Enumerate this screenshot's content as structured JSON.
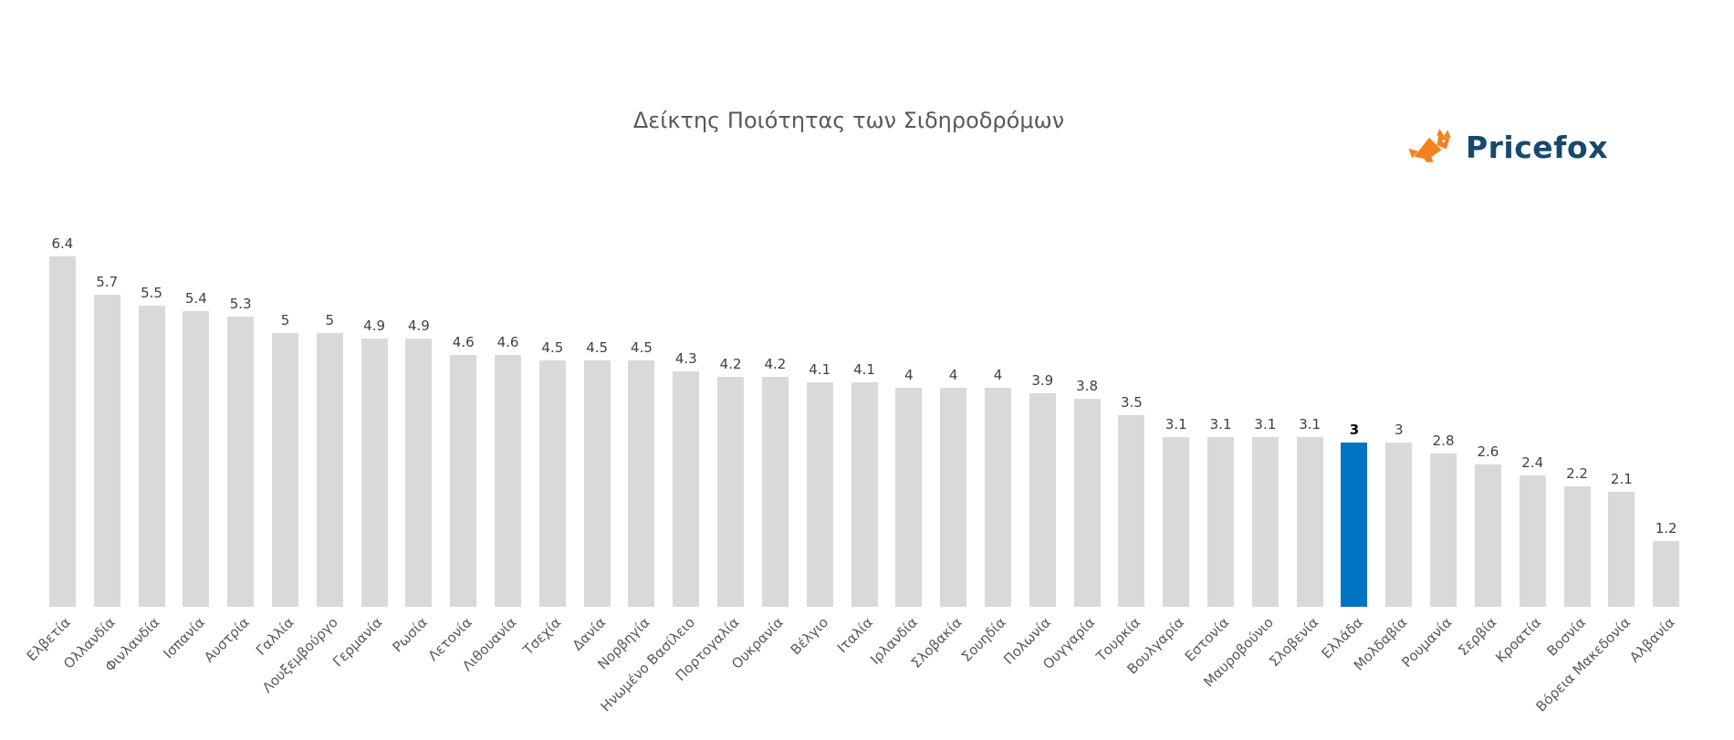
{
  "title": "Δείκτης Ποιότητας των Σιδηροδρόμων",
  "logo": {
    "text": "Pricefox",
    "icon": "fox-icon",
    "icon_color": "#f5821f",
    "text_color": "#17486e"
  },
  "chart_data": {
    "type": "bar",
    "title": "Δείκτης Ποιότητας των Σιδηροδρόμων",
    "categories": [
      "Ελβετία",
      "Ολλανδία",
      "Φινλανδία",
      "Ισπανία",
      "Αυστρία",
      "Γαλλία",
      "Λουξεμβούργο",
      "Γερμανία",
      "Ρωσία",
      "Λετονία",
      "Λιθουανία",
      "Τσεχία",
      "Δανία",
      "Νορβηγία",
      "Ηνωμένο Βασίλειο",
      "Πορτογαλία",
      "Ουκρανία",
      "Βέλγιο",
      "Ιταλία",
      "Ιρλανδία",
      "Σλοβακία",
      "Σουηδία",
      "Πολωνία",
      "Ουγγαρία",
      "Τουρκία",
      "Βουλγαρία",
      "Εστονία",
      "Μαυροβούνιο",
      "Σλοβενία",
      "Ελλάδα",
      "Μολδαβία",
      "Ρουμανία",
      "Σερβία",
      "Κροατία",
      "Βοσνία",
      "Βόρεια Μακεδονία",
      "Αλβανία"
    ],
    "values": [
      6.4,
      5.7,
      5.5,
      5.4,
      5.3,
      5,
      5,
      4.9,
      4.9,
      4.6,
      4.6,
      4.5,
      4.5,
      4.5,
      4.3,
      4.2,
      4.2,
      4.1,
      4.1,
      4,
      4,
      4,
      3.9,
      3.8,
      3.5,
      3.1,
      3.1,
      3.1,
      3.1,
      3,
      3,
      2.8,
      2.6,
      2.4,
      2.2,
      2.1,
      1.2
    ],
    "xlabel": "",
    "ylabel": "",
    "ylim": [
      0,
      7
    ],
    "grid": false,
    "legend": false,
    "bar_color": "#d9d9d9",
    "highlight_category": "Ελλάδα",
    "highlight_color": "#0074c2",
    "value_labels": true
  }
}
